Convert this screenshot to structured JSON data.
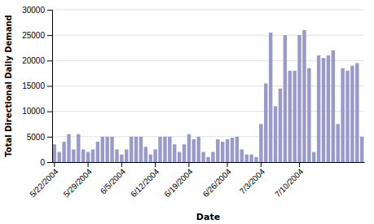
{
  "chart_data": {
    "type": "bar",
    "xlabel": "Date",
    "ylabel": "Total Directional Daily Demand",
    "categories": [
      "5/22/2004",
      null,
      null,
      null,
      null,
      null,
      null,
      "5/29/2004",
      null,
      null,
      null,
      null,
      null,
      null,
      "6/5/2004",
      null,
      null,
      null,
      null,
      null,
      null,
      "6/12/2004",
      null,
      null,
      null,
      null,
      null,
      null,
      "6/19/2004",
      null,
      null,
      null,
      null,
      null,
      null,
      null,
      "6/26/2004",
      null,
      null,
      null,
      null,
      null,
      null,
      "7/3/2004",
      null,
      null,
      null,
      null,
      null,
      null,
      null,
      "7/10/2004",
      null,
      null,
      null,
      null,
      null,
      null,
      null,
      null,
      null,
      null,
      null,
      null,
      null
    ],
    "values": [
      3500,
      2000,
      4000,
      5500,
      2500,
      5500,
      2500,
      2000,
      2500,
      4000,
      5000,
      5000,
      5000,
      2500,
      1500,
      2500,
      5000,
      5000,
      5000,
      3000,
      1500,
      2500,
      5000,
      5000,
      5000,
      3500,
      2000,
      3500,
      5500,
      4500,
      5000,
      2000,
      1000,
      2000,
      4500,
      4000,
      4500,
      4800,
      5000,
      2500,
      1500,
      1500,
      1000,
      7500,
      15500,
      25500,
      11000,
      14500,
      25000,
      18000,
      18000,
      25000,
      26000,
      18500,
      2000,
      21000,
      20500,
      21000,
      22000,
      7500,
      18500,
      18000,
      19000,
      19500,
      5000
    ],
    "color": "#9999cc",
    "ylim": [
      0,
      30000
    ],
    "yticks": [
      0,
      5000,
      10000,
      15000,
      20000,
      25000,
      30000
    ],
    "grid": true
  }
}
